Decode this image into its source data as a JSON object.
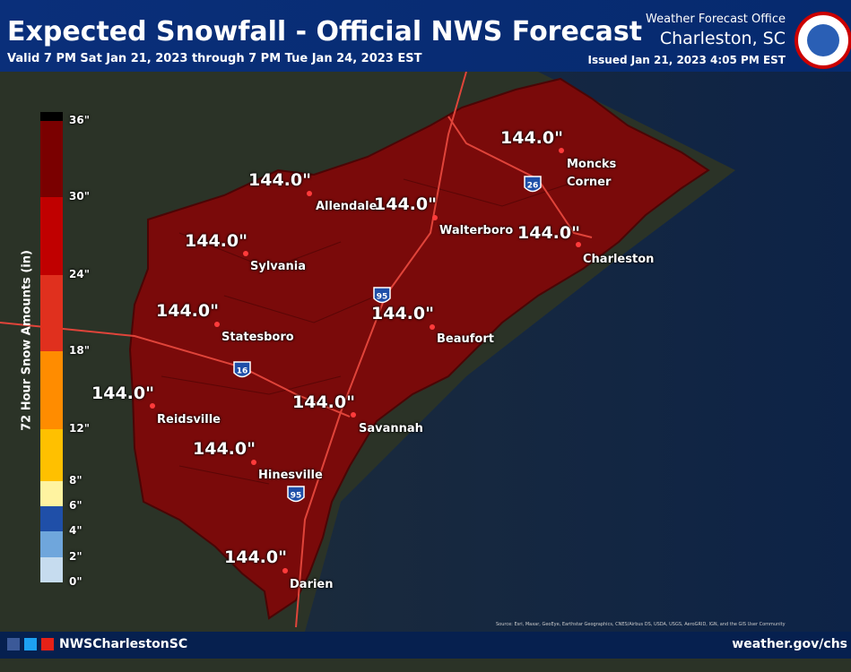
{
  "header": {
    "title": "Expected Snowfall - Official NWS Forecast",
    "subtitle": "Valid 7 PM Sat Jan 21, 2023 through 7 PM Tue Jan 24, 2023 EST",
    "office_label": "Weather Forecast Office",
    "office": "Charleston, SC",
    "issued": "Issued Jan 21, 2023 4:05 PM EST"
  },
  "legend": {
    "title": "72 Hour Snow Amounts (in)",
    "ticks": [
      "0\"",
      "2\"",
      "4\"",
      "6\"",
      "8\"",
      "12\"",
      "18\"",
      "24\"",
      "30\"",
      "36\""
    ],
    "colors": [
      "#c6dcef",
      "#6fa6dc",
      "#1f4fa8",
      "#fff3a0",
      "#ffc000",
      "#ff8c00",
      "#e0301e",
      "#c00000",
      "#7a0000"
    ]
  },
  "cities": [
    {
      "name": "Moncks Corner",
      "amount": "144.0\""
    },
    {
      "name": "Allendale",
      "amount": "144.0\""
    },
    {
      "name": "Walterboro",
      "amount": "144.0\""
    },
    {
      "name": "Charleston",
      "amount": "144.0\""
    },
    {
      "name": "Sylvania",
      "amount": "144.0\""
    },
    {
      "name": "Statesboro",
      "amount": "144.0\""
    },
    {
      "name": "Beaufort",
      "amount": "144.0\""
    },
    {
      "name": "Reidsville",
      "amount": "144.0\""
    },
    {
      "name": "Savannah",
      "amount": "144.0\""
    },
    {
      "name": "Hinesville",
      "amount": "144.0\""
    },
    {
      "name": "Darien",
      "amount": "144.0\""
    }
  ],
  "highways": [
    "26",
    "95",
    "16",
    "95"
  ],
  "footer": {
    "social": "NWSCharlestonSC",
    "website": "weather.gov/chs",
    "credits": "Source: Esri, Maxar, GeoEye, Earthstar Geographics, CNES/Airbus DS, USDA, USGS, AeroGRID, IGN, and the GIS User Community"
  }
}
